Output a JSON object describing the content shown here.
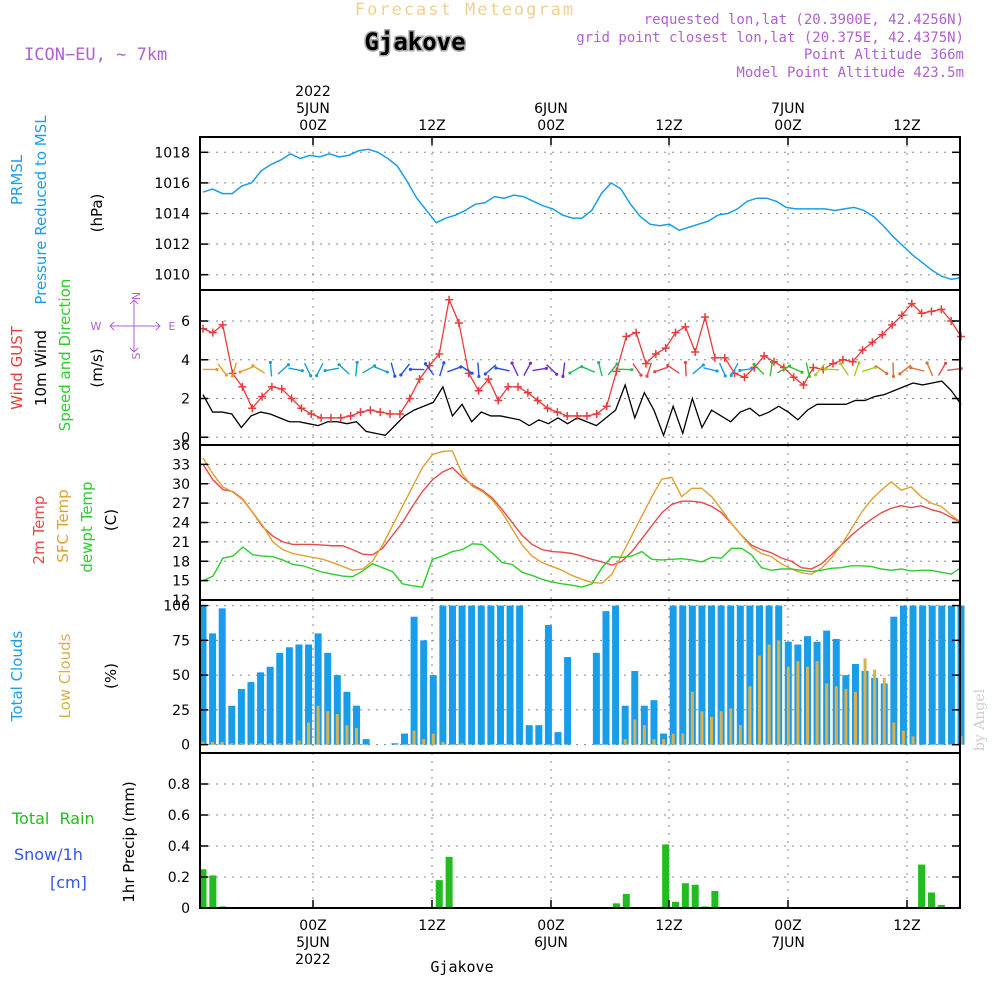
{
  "header": {
    "subtitle": "Forecast Meteogram",
    "location": "Gjakove",
    "model": "ICON−EU, ∼ 7km",
    "requested": "requested lon,lat (20.3900E, 42.4256N)",
    "grid_point": "grid point closest lon,lat (20.375E, 42.4375N)",
    "point_alt": "Point Altitude 366m",
    "model_alt": "Model Point Altitude 423.5m",
    "watermark": "by Angel",
    "footer_location": "Gjakove"
  },
  "colors": {
    "pressure": "#1a9de8",
    "gust": "#e83c3c",
    "wind": "#000000",
    "temp2m": "#e84a4a",
    "sfc": "#e0a030",
    "dewpt": "#2ecc2e",
    "total_clouds": "#1a9de8",
    "low_clouds": "#d8b050",
    "rain": "#22bb22",
    "snow": "#3355ee",
    "label_purple": "#b060d0"
  },
  "chart_data": [
    {
      "type": "line",
      "id": "pressure",
      "ylabel_lines": [
        "PRMSL",
        "Pressure Reduced to MSL"
      ],
      "unit": "(hPa)",
      "ylim": [
        1009,
        1019
      ],
      "yticks": [
        1010,
        1012,
        1014,
        1016,
        1018
      ],
      "series": [
        {
          "name": "PRMSL",
          "values": [
            1015.4,
            1015.6,
            1015.3,
            1015.3,
            1015.8,
            1016.0,
            1016.8,
            1017.2,
            1017.5,
            1017.9,
            1017.6,
            1017.8,
            1017.7,
            1017.9,
            1017.7,
            1017.8,
            1018.1,
            1018.2,
            1018.0,
            1017.6,
            1017.1,
            1016.1,
            1015.0,
            1014.2,
            1013.4,
            1013.7,
            1013.9,
            1014.2,
            1014.6,
            1014.7,
            1015.1,
            1015.0,
            1015.2,
            1015.1,
            1014.8,
            1014.5,
            1014.3,
            1013.9,
            1013.7,
            1013.7,
            1014.2,
            1015.3,
            1016.0,
            1015.6,
            1014.6,
            1013.8,
            1013.3,
            1013.2,
            1013.3,
            1012.9,
            1013.1,
            1013.3,
            1013.5,
            1013.9,
            1014.0,
            1014.3,
            1014.8,
            1015.0,
            1015.0,
            1014.8,
            1014.4,
            1014.3,
            1014.3,
            1014.3,
            1014.3,
            1014.2,
            1014.3,
            1014.4,
            1014.2,
            1013.8,
            1013.2,
            1012.5,
            1011.9,
            1011.3,
            1010.8,
            1010.3,
            1009.9,
            1009.7,
            1009.8
          ]
        }
      ]
    },
    {
      "type": "line",
      "id": "wind",
      "ylabel_lines": [
        "Wind GUST",
        "10m Wind",
        "Speed and Direction"
      ],
      "unit": "(m/s)",
      "compass": {
        "n": "N",
        "s": "S",
        "w": "W",
        "e": "E"
      },
      "ylim": [
        -0.4,
        7.6
      ],
      "yticks": [
        0,
        2,
        4,
        6
      ],
      "series": [
        {
          "name": "Wind GUST",
          "values": [
            5.6,
            5.4,
            5.8,
            3.3,
            2.6,
            1.5,
            2.1,
            2.6,
            2.5,
            2.0,
            1.5,
            1.2,
            1.0,
            1.0,
            1.0,
            1.1,
            1.3,
            1.4,
            1.3,
            1.2,
            1.2,
            2.0,
            3.0,
            3.7,
            4.3,
            7.1,
            5.9,
            3.3,
            2.4,
            3.0,
            1.9,
            2.6,
            2.6,
            2.3,
            1.9,
            1.5,
            1.3,
            1.1,
            1.1,
            1.1,
            1.2,
            1.6,
            3.4,
            5.2,
            5.4,
            3.8,
            4.3,
            4.6,
            5.4,
            5.7,
            4.4,
            6.2,
            4.1,
            4.1,
            3.3,
            3.1,
            3.6,
            4.2,
            3.9,
            3.6,
            3.1,
            2.7,
            3.6,
            3.5,
            3.8,
            4.0,
            3.9,
            4.5,
            4.9,
            5.3,
            5.8,
            6.3,
            6.9,
            6.4,
            6.5,
            6.6,
            6.0,
            5.2
          ]
        },
        {
          "name": "10m Wind",
          "values": [
            2.2,
            1.3,
            1.3,
            1.2,
            0.5,
            1.1,
            1.3,
            1.2,
            1.0,
            0.8,
            0.8,
            0.7,
            0.6,
            0.8,
            0.8,
            0.7,
            0.8,
            0.3,
            0.2,
            0.1,
            0.6,
            1.1,
            1.4,
            1.6,
            1.8,
            2.6,
            1.1,
            1.7,
            0.8,
            1.3,
            1.1,
            1.1,
            1.0,
            0.9,
            0.6,
            0.9,
            0.7,
            1.0,
            0.7,
            1.0,
            0.8,
            0.6,
            1.0,
            1.4,
            2.7,
            1.0,
            2.3,
            1.4,
            0.1,
            1.6,
            0.2,
            2.0,
            0.5,
            1.4,
            1.1,
            0.8,
            1.3,
            1.5,
            1.1,
            1.3,
            1.6,
            1.3,
            0.9,
            1.4,
            1.7,
            1.7,
            1.7,
            1.7,
            1.9,
            1.9,
            2.1,
            2.2,
            2.4,
            2.6,
            2.8,
            2.7,
            2.8,
            2.9,
            2.4,
            1.7
          ]
        }
      ]
    },
    {
      "type": "line",
      "id": "temperature",
      "ylabel_lines": [
        "2m Temp",
        "SFC Temp",
        "dewpt Temp"
      ],
      "unit": "(C)",
      "ylim": [
        12,
        36
      ],
      "yticks": [
        12,
        15,
        18,
        21,
        24,
        27,
        30,
        33,
        36
      ],
      "series": [
        {
          "name": "2m Temp",
          "values": [
            33.0,
            30.6,
            29.1,
            28.8,
            27.6,
            25.5,
            23.3,
            21.9,
            21.0,
            20.6,
            20.6,
            20.6,
            20.5,
            20.4,
            20.4,
            19.8,
            19.1,
            19.0,
            20.0,
            22.0,
            24.0,
            26.5,
            28.8,
            30.6,
            31.8,
            32.5,
            31.0,
            29.8,
            29.0,
            27.8,
            26.0,
            24.0,
            22.0,
            20.6,
            19.8,
            19.5,
            19.4,
            19.2,
            18.8,
            18.3,
            17.9,
            17.4,
            18.0,
            19.5,
            21.5,
            23.5,
            25.5,
            26.8,
            27.3,
            27.3,
            27.1,
            26.5,
            25.5,
            23.8,
            22.0,
            20.5,
            19.8,
            19.3,
            18.5,
            18.0,
            17.0,
            16.8,
            17.6,
            19.0,
            20.5,
            22.0,
            23.3,
            24.5,
            25.5,
            26.2,
            26.6,
            26.3,
            26.6,
            26.0,
            25.6,
            24.8,
            24.0
          ]
        },
        {
          "name": "SFC Temp",
          "values": [
            34.0,
            31.5,
            29.5,
            28.7,
            27.5,
            25.5,
            23.5,
            21.0,
            19.8,
            19.2,
            18.9,
            18.6,
            18.3,
            17.8,
            17.2,
            16.6,
            16.8,
            18.0,
            20.5,
            23.5,
            26.5,
            29.5,
            32.5,
            34.5,
            35.0,
            35.1,
            31.5,
            29.6,
            28.8,
            27.5,
            25.5,
            23.0,
            20.5,
            18.8,
            17.8,
            17.2,
            16.6,
            15.8,
            15.2,
            14.7,
            14.6,
            16.0,
            19.0,
            22.0,
            25.0,
            28.0,
            30.7,
            31.0,
            28.0,
            29.3,
            29.3,
            28.0,
            26.0,
            23.8,
            22.0,
            20.2,
            19.2,
            18.7,
            17.6,
            16.8,
            16.2,
            16.0,
            16.9,
            18.5,
            20.5,
            23.0,
            25.5,
            27.5,
            29.0,
            30.3,
            29.0,
            29.5,
            28.0,
            27.0,
            26.5,
            25.2,
            24.0
          ]
        },
        {
          "name": "dewpt Temp",
          "values": [
            15.0,
            15.7,
            18.5,
            18.8,
            20.2,
            19.0,
            18.8,
            18.7,
            18.2,
            17.5,
            17.3,
            16.8,
            16.3,
            16.0,
            15.7,
            15.6,
            16.5,
            17.6,
            17.0,
            16.4,
            14.5,
            14.2,
            14.0,
            18.3,
            18.8,
            19.5,
            19.8,
            20.7,
            20.6,
            19.3,
            17.8,
            17.5,
            16.3,
            15.8,
            15.2,
            14.8,
            14.5,
            14.3,
            14.0,
            14.5,
            17.0,
            18.7,
            18.6,
            18.8,
            19.5,
            18.3,
            18.2,
            18.3,
            18.4,
            18.2,
            17.9,
            18.6,
            18.5,
            20.0,
            20.0,
            19.0,
            17.0,
            16.6,
            16.8,
            16.8,
            16.6,
            16.4,
            16.6,
            16.9,
            17.0,
            17.3,
            17.3,
            17.2,
            16.8,
            16.6,
            16.8,
            16.5,
            16.6,
            16.6,
            16.3,
            16.0,
            17.0
          ]
        }
      ]
    },
    {
      "type": "bar",
      "id": "clouds",
      "ylabel_lines": [
        "Total Clouds",
        "Low Clouds"
      ],
      "unit": "(%)",
      "ylim": [
        -6,
        104
      ],
      "yticks": [
        0,
        25,
        50,
        75,
        100
      ],
      "series": [
        {
          "name": "Total Clouds",
          "values": [
            100,
            80,
            98,
            28,
            40,
            45,
            52,
            56,
            66,
            70,
            72,
            72,
            80,
            66,
            50,
            38,
            28,
            4,
            0,
            0,
            1,
            8,
            92,
            75,
            50,
            100,
            100,
            100,
            100,
            100,
            100,
            100,
            100,
            100,
            14,
            14,
            86,
            9,
            63,
            0,
            0,
            66,
            96,
            100,
            28,
            53,
            28,
            32,
            8,
            100,
            100,
            100,
            100,
            100,
            100,
            100,
            100,
            100,
            100,
            100,
            100,
            74,
            72,
            78,
            74,
            82,
            76,
            50,
            58,
            53,
            48,
            44,
            92,
            100,
            100,
            100,
            100,
            100,
            100,
            100
          ]
        },
        {
          "name": "Low Clouds",
          "values": [
            2,
            2,
            2,
            1,
            1,
            1,
            1,
            1,
            1,
            1,
            3,
            16,
            28,
            24,
            22,
            14,
            12,
            0,
            0,
            0,
            0,
            0,
            10,
            4,
            8,
            2,
            0,
            1,
            0,
            0,
            0,
            0,
            0,
            0,
            0,
            0,
            0,
            0,
            0,
            0,
            0,
            0,
            0,
            0,
            4,
            18,
            14,
            4,
            4,
            8,
            8,
            38,
            24,
            20,
            24,
            26,
            14,
            42,
            64,
            72,
            75,
            56,
            60,
            56,
            60,
            44,
            42,
            40,
            38,
            62,
            54,
            48,
            16,
            10,
            6,
            0,
            0,
            0,
            0,
            6
          ]
        }
      ]
    },
    {
      "type": "bar",
      "id": "precip",
      "ylabel_lines": [
        "Total  Rain",
        "Snow/1h",
        "[cm]"
      ],
      "axis_label": "1hr Precip (mm)",
      "ylim": [
        0,
        1.0
      ],
      "yticks": [
        0,
        0.2,
        0.4,
        0.6,
        0.8
      ],
      "series": [
        {
          "name": "Total Rain",
          "values": [
            0.25,
            0.21,
            0.01,
            0,
            0,
            0,
            0,
            0,
            0,
            0,
            0,
            0,
            0,
            0,
            0,
            0,
            0,
            0,
            0,
            0,
            0,
            0,
            0,
            0,
            0.18,
            0.33,
            0,
            0,
            0,
            0,
            0,
            0,
            0,
            0,
            0,
            0,
            0,
            0,
            0,
            0,
            0,
            0,
            0.03,
            0.09,
            0,
            0,
            0,
            0.41,
            0.04,
            0.16,
            0.15,
            0.01,
            0.11,
            0,
            0,
            0,
            0,
            0,
            0,
            0,
            0,
            0,
            0,
            0,
            0,
            0,
            0,
            0,
            0,
            0,
            0,
            0,
            0,
            0.28,
            0.1,
            0.02,
            0,
            0
          ]
        }
      ]
    }
  ],
  "time_axis": {
    "top_labels": [
      {
        "lines": [
          "2022",
          "5JUN",
          "00Z"
        ]
      },
      {
        "lines": [
          "12Z"
        ]
      },
      {
        "lines": [
          "6JUN",
          "00Z"
        ]
      },
      {
        "lines": [
          "12Z"
        ]
      },
      {
        "lines": [
          "7JUN",
          "00Z"
        ]
      },
      {
        "lines": [
          "12Z"
        ]
      }
    ],
    "bottom_labels": [
      {
        "lines": [
          "00Z",
          "5JUN",
          "2022"
        ]
      },
      {
        "lines": [
          "12Z"
        ]
      },
      {
        "lines": [
          "00Z",
          "6JUN"
        ]
      },
      {
        "lines": [
          "12Z"
        ]
      },
      {
        "lines": [
          "00Z",
          "7JUN"
        ]
      },
      {
        "lines": [
          "12Z"
        ]
      }
    ]
  }
}
